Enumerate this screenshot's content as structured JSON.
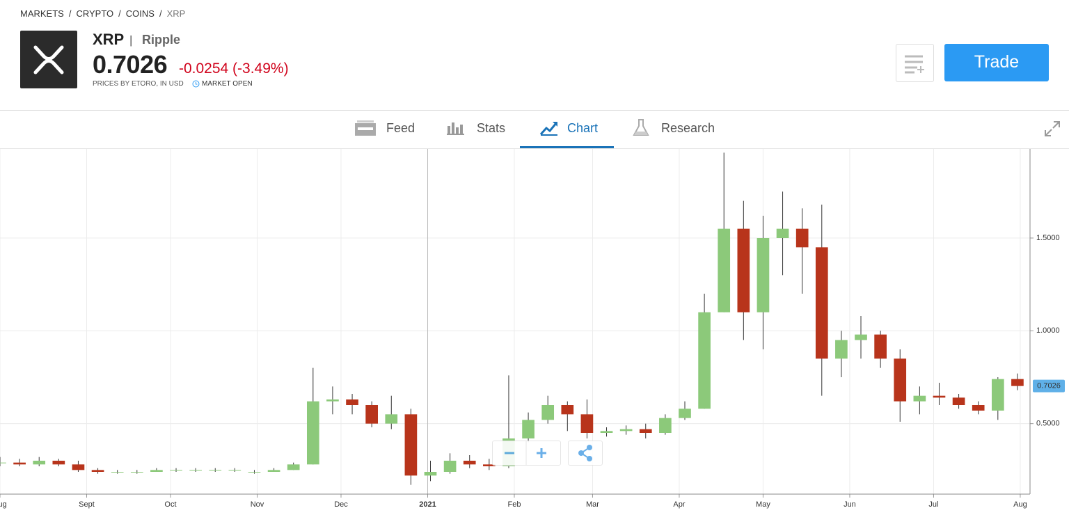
{
  "header": {
    "breadcrumbs": [
      "MARKETS",
      "CRYPTO",
      "COINS",
      "XRP"
    ],
    "symbol": "XRP",
    "separator": "|",
    "name": "Ripple",
    "price": "0.7026",
    "change": "-0.0254 (-3.49%)",
    "source": "PRICES BY ETORO, IN USD",
    "status": "MARKET OPEN",
    "trade_button": "Trade"
  },
  "tabs": [
    "Feed",
    "Stats",
    "Chart",
    "Research"
  ],
  "chart_data": {
    "type": "candlestick",
    "up_color": "#8cc97a",
    "down_color": "#b8341b",
    "grid": true,
    "last_price": 0.7026,
    "x": [
      0,
      7,
      14,
      21,
      28,
      35,
      42,
      49,
      56,
      63,
      70,
      77,
      84,
      91,
      98,
      105,
      112,
      119,
      126,
      133,
      140,
      147,
      154,
      161,
      168,
      175,
      182,
      189,
      196,
      203,
      210,
      217,
      224,
      231,
      238,
      245,
      252,
      259,
      266,
      273,
      280,
      287,
      294,
      301,
      308,
      315,
      322,
      329,
      336,
      343,
      350,
      357,
      364
    ],
    "open": [
      0.29,
      0.29,
      0.28,
      0.3,
      0.28,
      0.25,
      0.24,
      0.24,
      0.24,
      0.25,
      0.25,
      0.25,
      0.25,
      0.24,
      0.24,
      0.25,
      0.28,
      0.62,
      0.63,
      0.6,
      0.5,
      0.55,
      0.22,
      0.24,
      0.3,
      0.28,
      0.27,
      0.42,
      0.52,
      0.6,
      0.55,
      0.45,
      0.46,
      0.47,
      0.45,
      0.53,
      0.58,
      1.1,
      1.55,
      1.1,
      1.5,
      1.55,
      1.45,
      0.85,
      0.95,
      0.98,
      0.85,
      0.62,
      0.65,
      0.64,
      0.6,
      0.57,
      0.74
    ],
    "high": [
      0.32,
      0.31,
      0.32,
      0.31,
      0.3,
      0.26,
      0.25,
      0.25,
      0.26,
      0.26,
      0.26,
      0.26,
      0.26,
      0.25,
      0.26,
      0.29,
      0.8,
      0.7,
      0.66,
      0.62,
      0.65,
      0.58,
      0.3,
      0.34,
      0.33,
      0.31,
      0.76,
      0.56,
      0.65,
      0.62,
      0.63,
      0.48,
      0.49,
      0.5,
      0.55,
      0.62,
      1.2,
      1.96,
      1.7,
      1.62,
      1.75,
      1.66,
      1.68,
      1.0,
      1.08,
      1.0,
      0.9,
      0.7,
      0.72,
      0.66,
      0.62,
      0.75,
      0.77
    ],
    "low": [
      0.27,
      0.27,
      0.27,
      0.27,
      0.24,
      0.23,
      0.23,
      0.23,
      0.24,
      0.24,
      0.24,
      0.24,
      0.24,
      0.23,
      0.24,
      0.25,
      0.28,
      0.55,
      0.55,
      0.48,
      0.47,
      0.17,
      0.19,
      0.23,
      0.26,
      0.25,
      0.26,
      0.4,
      0.5,
      0.46,
      0.42,
      0.43,
      0.44,
      0.42,
      0.44,
      0.52,
      0.58,
      1.1,
      0.95,
      0.9,
      1.3,
      1.2,
      0.65,
      0.75,
      0.85,
      0.8,
      0.51,
      0.55,
      0.6,
      0.58,
      0.55,
      0.52,
      0.68
    ],
    "close": [
      0.29,
      0.28,
      0.3,
      0.28,
      0.25,
      0.24,
      0.24,
      0.24,
      0.25,
      0.25,
      0.25,
      0.25,
      0.25,
      0.24,
      0.25,
      0.28,
      0.62,
      0.63,
      0.6,
      0.5,
      0.55,
      0.22,
      0.24,
      0.3,
      0.28,
      0.27,
      0.42,
      0.52,
      0.6,
      0.55,
      0.45,
      0.46,
      0.47,
      0.45,
      0.53,
      0.58,
      1.1,
      1.55,
      1.1,
      1.5,
      1.55,
      1.45,
      0.85,
      0.95,
      0.98,
      0.85,
      0.62,
      0.65,
      0.64,
      0.6,
      0.57,
      0.74,
      0.7026
    ],
    "xlim": [
      0,
      368.5
    ],
    "xticks": [
      {
        "value": 0,
        "label": "Aug"
      },
      {
        "value": 31,
        "label": "Sept"
      },
      {
        "value": 61,
        "label": "Oct"
      },
      {
        "value": 92,
        "label": "Nov"
      },
      {
        "value": 122,
        "label": "Dec"
      },
      {
        "value": 153,
        "label": "2021"
      },
      {
        "value": 184,
        "label": "Feb"
      },
      {
        "value": 212,
        "label": "Mar"
      },
      {
        "value": 243,
        "label": "Apr"
      },
      {
        "value": 273,
        "label": "May"
      },
      {
        "value": 304,
        "label": "Jun"
      },
      {
        "value": 334,
        "label": "Jul"
      },
      {
        "value": 365,
        "label": "Aug"
      }
    ],
    "ylim": [
      0.12,
      1.98
    ],
    "yticks": [
      {
        "value": 0.5,
        "label": "0.5000"
      },
      {
        "value": 1.0,
        "label": "1.0000"
      },
      {
        "value": 1.5,
        "label": "1.5000"
      }
    ]
  }
}
